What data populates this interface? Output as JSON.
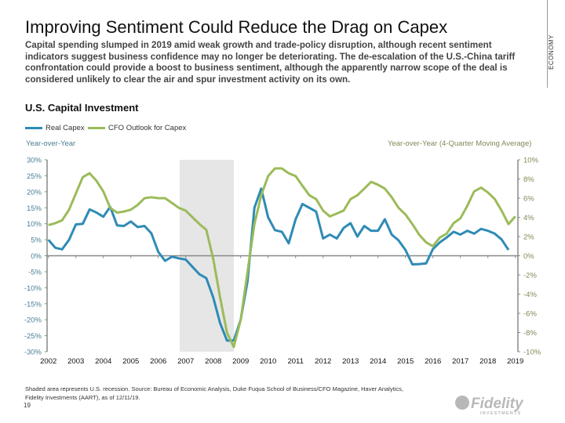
{
  "slide": {
    "title": "Improving Sentiment Could Reduce the Drag on Capex",
    "subtitle": "Capital spending slumped in 2019 amid weak growth and trade-policy disruption, although recent sentiment indicators suggest business confidence may no longer be deteriorating. The de-escalation of the U.S.-China tariff confrontation could provide a boost to business sentiment, although the apparently narrow scope of the deal is considered unlikely to clear the air and spur investment activity on its own.",
    "section_tag": "ECONOMY",
    "chart_heading": "U.S. Capital Investment",
    "footer_line1": "Shaded area represents U.S. recession. Source: Bureau of Economic Analysis, Duke Fuqua School of Business/CFO Magazine, Haver Analytics,",
    "footer_line2": "Fidelity Investments (AART), as of 12/11/19.",
    "page_number": "19",
    "logo_text": "Fidelity INVESTMENTS"
  },
  "chart_data": {
    "type": "line",
    "ylabel_left": "Year-over-Year",
    "ylabel_right": "Year-over-Year (4-Quarter Moving Average)",
    "ylim_left": [
      -30,
      30
    ],
    "ylim_right": [
      -10,
      10
    ],
    "yticks_left": [
      "30%",
      "25%",
      "20%",
      "15%",
      "10%",
      "5%",
      "0%",
      "-5%",
      "-10%",
      "-15%",
      "-20%",
      "-25%",
      "-30%"
    ],
    "yticks_right": [
      "10%",
      "8%",
      "6%",
      "4%",
      "2%",
      "0%",
      "-2%",
      "-4%",
      "-6%",
      "-8%",
      "-10%"
    ],
    "xticks": [
      "2002",
      "2003",
      "2004",
      "2005",
      "2006",
      "2007",
      "2008",
      "2009",
      "2010",
      "2011",
      "2012",
      "2013",
      "2014",
      "2015",
      "2016",
      "2017",
      "2018",
      "2019"
    ],
    "grid": false,
    "legend_position": "top-left",
    "recession": [
      "2006-Q4",
      "2008-Q4"
    ],
    "recession_color": "#e6e6e6",
    "x": [
      "2002-Q1",
      "2002-Q2",
      "2002-Q3",
      "2002-Q4",
      "2003-Q1",
      "2003-Q2",
      "2003-Q3",
      "2003-Q4",
      "2004-Q1",
      "2004-Q2",
      "2004-Q3",
      "2004-Q4",
      "2005-Q1",
      "2005-Q2",
      "2005-Q3",
      "2005-Q4",
      "2006-Q1",
      "2006-Q2",
      "2006-Q3",
      "2006-Q4",
      "2007-Q1",
      "2007-Q2",
      "2007-Q3",
      "2007-Q4",
      "2008-Q1",
      "2008-Q2",
      "2008-Q3",
      "2008-Q4",
      "2009-Q1",
      "2009-Q2",
      "2009-Q3",
      "2009-Q4",
      "2010-Q1",
      "2010-Q2",
      "2010-Q3",
      "2010-Q4",
      "2011-Q1",
      "2011-Q2",
      "2011-Q3",
      "2011-Q4",
      "2012-Q1",
      "2012-Q2",
      "2012-Q3",
      "2012-Q4",
      "2013-Q1",
      "2013-Q2",
      "2013-Q3",
      "2013-Q4",
      "2014-Q1",
      "2014-Q2",
      "2014-Q3",
      "2014-Q4",
      "2015-Q1",
      "2015-Q2",
      "2015-Q3",
      "2015-Q4",
      "2016-Q1",
      "2016-Q2",
      "2016-Q3",
      "2016-Q4",
      "2017-Q1",
      "2017-Q2",
      "2017-Q3",
      "2017-Q4",
      "2018-Q1",
      "2018-Q2",
      "2018-Q3",
      "2018-Q4",
      "2019-Q1"
    ],
    "series": [
      {
        "name": "Real Capex",
        "axis": "left",
        "color": "#2e8bb5",
        "values": [
          5,
          2.5,
          2,
          5,
          9.8,
          10,
          14.5,
          13.5,
          12.2,
          15.3,
          9.5,
          9.3,
          10.7,
          9,
          9.3,
          7,
          1.2,
          -1.6,
          -0.3,
          -0.8,
          -1.2,
          -3.5,
          -5.8,
          -7,
          -13,
          -21,
          -26.5,
          -26.5,
          -20,
          -8,
          15,
          21,
          12,
          8,
          7.5,
          3.9,
          11.4,
          16.2,
          15,
          13.8,
          5.4,
          6.6,
          5.4,
          8.7,
          10.2,
          6,
          9.3,
          7.8,
          7.8,
          11.4,
          6.6,
          4.8,
          1.8,
          -2.7,
          -2.6,
          -2.4,
          2.1,
          4.2,
          5.7,
          7.5,
          6.6,
          7.8,
          6.9,
          8.4,
          7.8,
          6.9,
          5.1,
          1.8,
          null
        ]
      },
      {
        "name": "CFO Outlook for Capex",
        "axis": "right",
        "color": "#9bbb59",
        "values": [
          3.2,
          3.4,
          3.7,
          4.8,
          6.5,
          8.2,
          8.6,
          7.8,
          6.7,
          5,
          4.5,
          4.6,
          4.8,
          5.3,
          6,
          6.1,
          6,
          6,
          5.5,
          5,
          4.7,
          4,
          3.3,
          2.7,
          -0.3,
          -4.3,
          -8,
          -9.5,
          -6.7,
          -1.7,
          3.3,
          6.3,
          8.3,
          9.1,
          9.1,
          8.6,
          8.3,
          7.3,
          6.3,
          5.9,
          4.7,
          4.1,
          4.4,
          4.7,
          5.9,
          6.3,
          7,
          7.7,
          7.4,
          7,
          6.1,
          5,
          4.3,
          3.3,
          2.2,
          1.4,
          1,
          1.9,
          2.3,
          3.4,
          3.9,
          5.2,
          6.7,
          7.1,
          6.6,
          5.9,
          4.7,
          3.3,
          4.1
        ]
      }
    ]
  }
}
